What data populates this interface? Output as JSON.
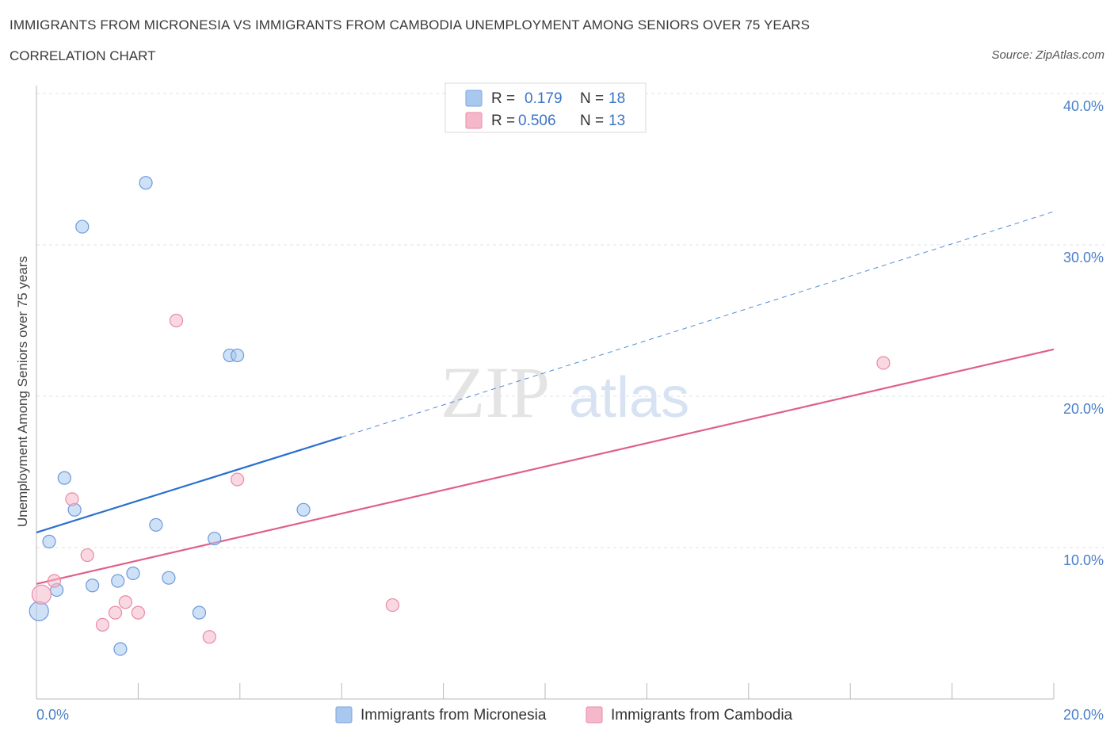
{
  "header": {
    "title": "IMMIGRANTS FROM MICRONESIA VS IMMIGRANTS FROM CAMBODIA UNEMPLOYMENT AMONG SENIORS OVER 75 YEARS",
    "subtitle": "CORRELATION CHART",
    "source": "Source: ZipAtlas.com"
  },
  "watermark": {
    "zip": "ZIP",
    "atlas": "atlas"
  },
  "legend": {
    "r_label": "R =",
    "n_label": "N =",
    "rows": [
      {
        "r": "0.179",
        "n": "18",
        "color": "#a8c8f0"
      },
      {
        "r": "0.506",
        "n": "13",
        "color": "#f5b8cb"
      }
    ]
  },
  "colors": {
    "micronesia_fill": "#a8c8f0",
    "micronesia_stroke": "#6b9ad8",
    "micronesia_line": "#2a6fd0",
    "cambodia_fill": "#f5b8cb",
    "cambodia_stroke": "#e88aa8",
    "cambodia_line": "#e0608a",
    "grid": "#dde3ea",
    "tick_text": "#4a7fc8"
  },
  "chart_data": {
    "type": "scatter",
    "title": "IMMIGRANTS FROM MICRONESIA VS IMMIGRANTS FROM CAMBODIA UNEMPLOYMENT AMONG SENIORS OVER 75 YEARS",
    "xlabel": "",
    "ylabel": "Unemployment Among Seniors over 75 years",
    "xlim": [
      0,
      20
    ],
    "ylim": [
      0,
      40
    ],
    "x_tick_labels": [
      "0.0%",
      "20.0%"
    ],
    "y_ticks": [
      10,
      20,
      30,
      40
    ],
    "y_tick_labels": [
      "10.0%",
      "20.0%",
      "30.0%",
      "40.0%"
    ],
    "series": [
      {
        "name": "Immigrants from Micronesia",
        "points": [
          [
            0.05,
            5.8
          ],
          [
            0.25,
            10.4
          ],
          [
            0.4,
            7.2
          ],
          [
            0.55,
            14.6
          ],
          [
            0.75,
            12.5
          ],
          [
            0.9,
            31.2
          ],
          [
            1.1,
            7.5
          ],
          [
            1.6,
            7.8
          ],
          [
            1.65,
            3.3
          ],
          [
            1.9,
            8.3
          ],
          [
            2.15,
            34.1
          ],
          [
            2.35,
            11.5
          ],
          [
            2.6,
            8.0
          ],
          [
            3.2,
            5.7
          ],
          [
            3.5,
            10.6
          ],
          [
            3.8,
            22.7
          ],
          [
            3.95,
            22.7
          ],
          [
            5.25,
            12.5
          ]
        ],
        "trend": {
          "x_start": 0.0,
          "y_start": 11.0,
          "x_solid_end": 6.0,
          "y_solid_end": 17.3,
          "x_end": 20.0,
          "y_end": 32.2
        }
      },
      {
        "name": "Immigrants from Cambodia",
        "points": [
          [
            0.1,
            6.9
          ],
          [
            0.35,
            7.8
          ],
          [
            0.7,
            13.2
          ],
          [
            1.0,
            9.5
          ],
          [
            1.3,
            4.9
          ],
          [
            1.55,
            5.7
          ],
          [
            1.75,
            6.4
          ],
          [
            2.0,
            5.7
          ],
          [
            2.75,
            25.0
          ],
          [
            3.4,
            4.1
          ],
          [
            3.95,
            14.5
          ],
          [
            7.0,
            6.2
          ],
          [
            16.65,
            22.2
          ]
        ],
        "trend": {
          "x_start": 0.0,
          "y_start": 7.6,
          "x_end": 20.0,
          "y_end": 23.1
        }
      }
    ]
  },
  "bottom_legend": [
    {
      "label": "Immigrants from Micronesia",
      "color": "#a8c8f0"
    },
    {
      "label": "Immigrants from Cambodia",
      "color": "#f5b8cb"
    }
  ]
}
